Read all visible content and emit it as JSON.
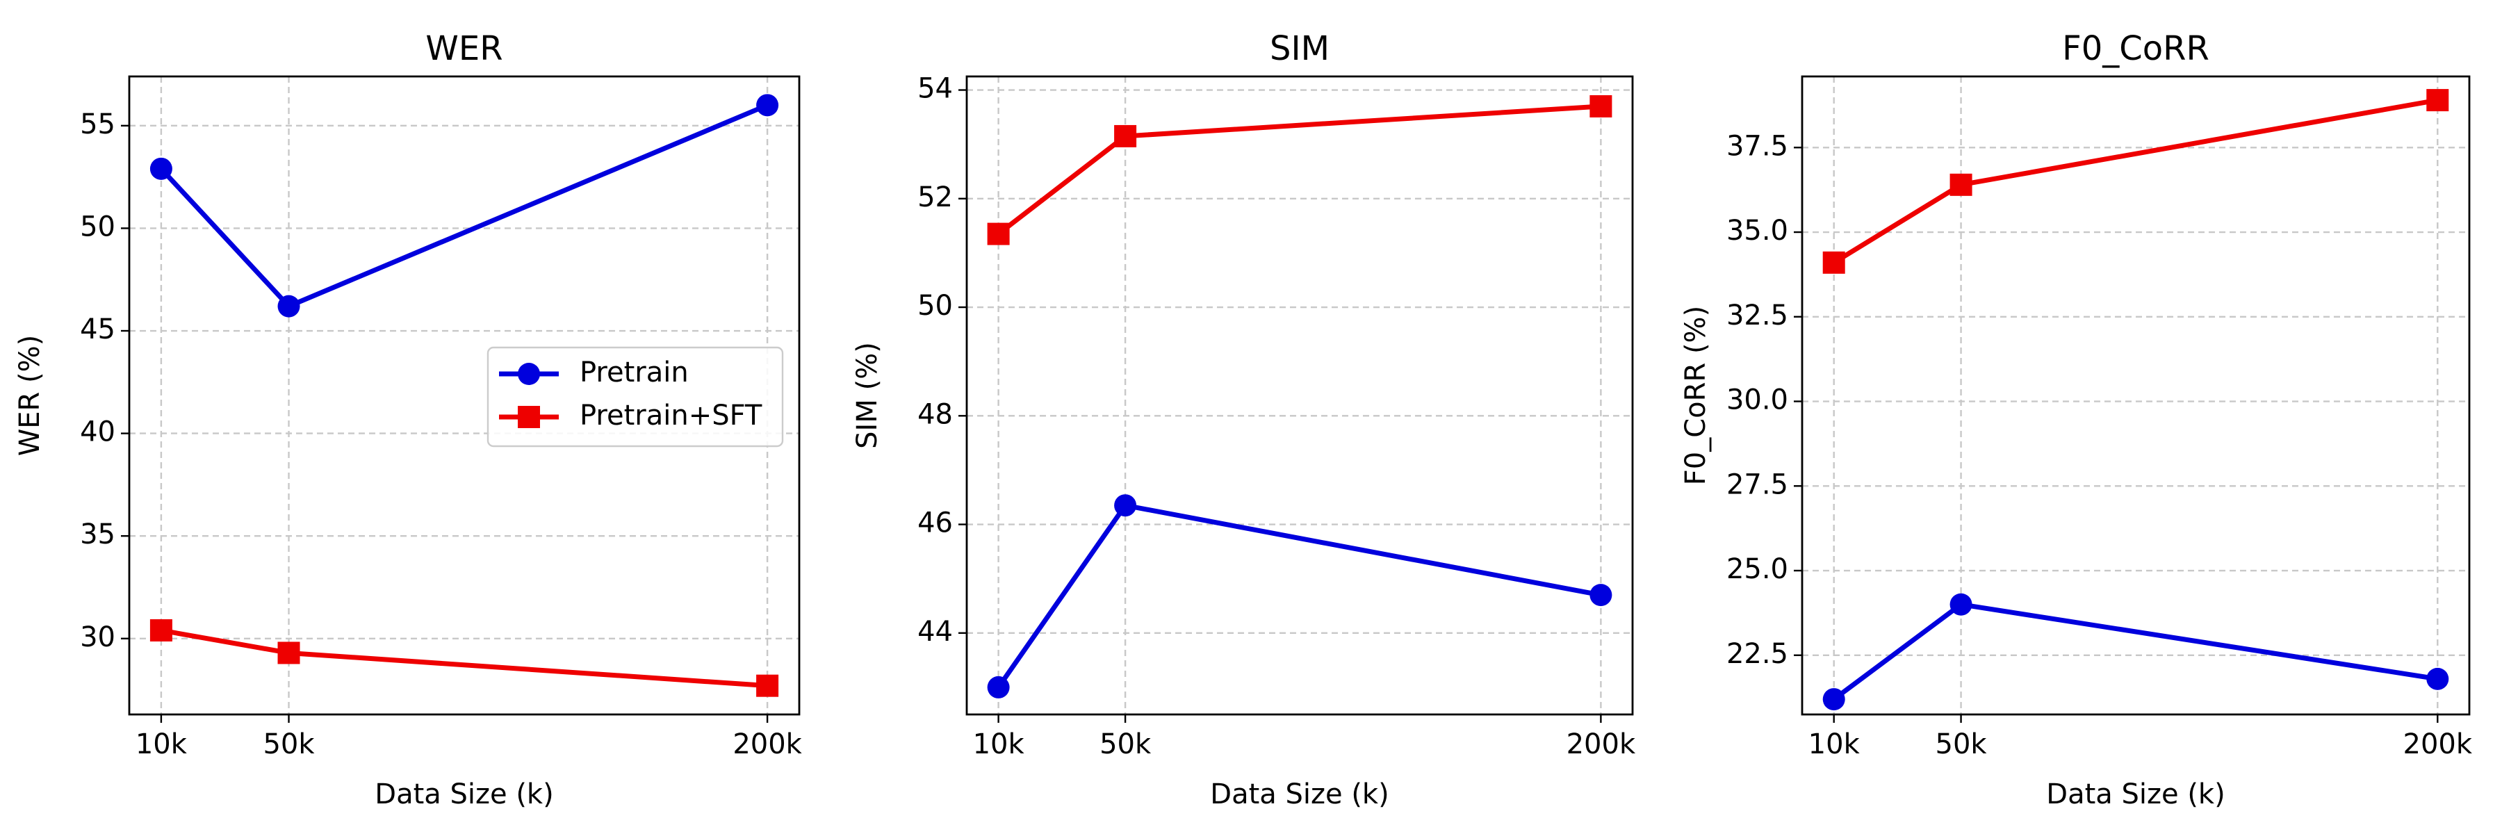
{
  "chart_data": [
    {
      "type": "line",
      "title": "WER",
      "xlabel": "Data Size (k)",
      "ylabel": "WER (%)",
      "x": [
        10,
        50,
        200
      ],
      "xtick_labels": [
        "10k",
        "50k",
        "200k"
      ],
      "xlim": [
        0,
        210
      ],
      "ylim": [
        26.3,
        57.4
      ],
      "yticks": [
        30,
        35,
        40,
        45,
        50,
        55
      ],
      "grid": true,
      "legend": "center-right",
      "series": [
        {
          "name": "Pretrain",
          "values": [
            52.9,
            46.2,
            56.0
          ],
          "color": "#0000dd",
          "marker": "circle"
        },
        {
          "name": "Pretrain+SFT",
          "values": [
            30.4,
            29.3,
            27.7
          ],
          "color": "#ee0000",
          "marker": "square"
        }
      ]
    },
    {
      "type": "line",
      "title": "SIM",
      "xlabel": "Data Size (k)",
      "ylabel": "SIM (%)",
      "x": [
        10,
        50,
        200
      ],
      "xtick_labels": [
        "10k",
        "50k",
        "200k"
      ],
      "xlim": [
        0,
        210
      ],
      "ylim": [
        42.5,
        54.25
      ],
      "yticks": [
        44,
        46,
        48,
        50,
        52,
        54
      ],
      "grid": true,
      "legend": "none",
      "series": [
        {
          "name": "Pretrain",
          "values": [
            43.0,
            46.35,
            44.7
          ],
          "color": "#0000dd",
          "marker": "circle"
        },
        {
          "name": "Pretrain+SFT",
          "values": [
            51.35,
            53.15,
            53.7
          ],
          "color": "#ee0000",
          "marker": "square"
        }
      ]
    },
    {
      "type": "line",
      "title": "F0_CoRR",
      "xlabel": "Data Size (k)",
      "ylabel": "F0_CoRR (%)",
      "x": [
        10,
        50,
        200
      ],
      "xtick_labels": [
        "10k",
        "50k",
        "200k"
      ],
      "xlim": [
        0,
        210
      ],
      "ylim": [
        20.75,
        39.6
      ],
      "yticks": [
        22.5,
        25.0,
        27.5,
        30.0,
        32.5,
        35.0,
        37.5
      ],
      "ytick_labels": [
        "22.5",
        "25.0",
        "27.5",
        "30.0",
        "32.5",
        "35.0",
        "37.5"
      ],
      "grid": true,
      "legend": "none",
      "series": [
        {
          "name": "Pretrain",
          "values": [
            21.2,
            24.0,
            21.8
          ],
          "color": "#0000dd",
          "marker": "circle"
        },
        {
          "name": "Pretrain+SFT",
          "values": [
            34.1,
            36.4,
            38.9
          ],
          "color": "#ee0000",
          "marker": "square"
        }
      ]
    }
  ]
}
